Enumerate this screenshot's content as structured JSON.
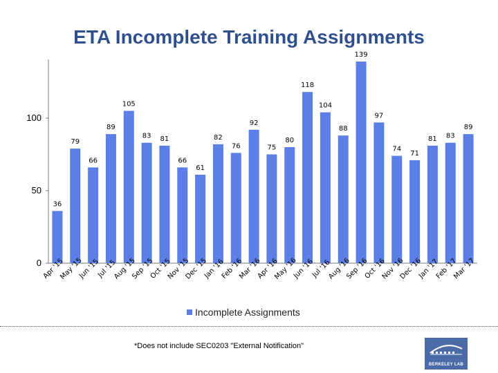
{
  "title": "ETA Incomplete Training Assignments",
  "chart_data": {
    "type": "bar",
    "categories": [
      "Apr '15",
      "May '15",
      "Jun '15",
      "Jul '15",
      "Aug '15",
      "Sep '15",
      "Oct '15",
      "Nov '15",
      "Dec '15",
      "Jan '16",
      "Feb '16",
      "Mar '16",
      "Apr '16",
      "May '16",
      "Jun '16",
      "Jul '16",
      "Aug '16",
      "Sep '16",
      "Oct '16",
      "Nov '16",
      "Dec '16",
      "Jan '17",
      "Feb '17",
      "Mar '17"
    ],
    "series": [
      {
        "name": "Incomplete Assignments",
        "values": [
          36,
          79,
          66,
          89,
          105,
          83,
          81,
          66,
          61,
          82,
          76,
          92,
          75,
          80,
          118,
          104,
          88,
          139,
          97,
          74,
          71,
          81,
          83,
          89
        ]
      }
    ],
    "yticks": [
      0,
      50,
      100
    ],
    "ylim": [
      0,
      150
    ],
    "grid": false,
    "legend": "bottom-center",
    "color": "#5b7fe6"
  },
  "footnote": "*Does not include SEC0203 \"External Notification\"",
  "logo_text": "BERKELEY LAB"
}
